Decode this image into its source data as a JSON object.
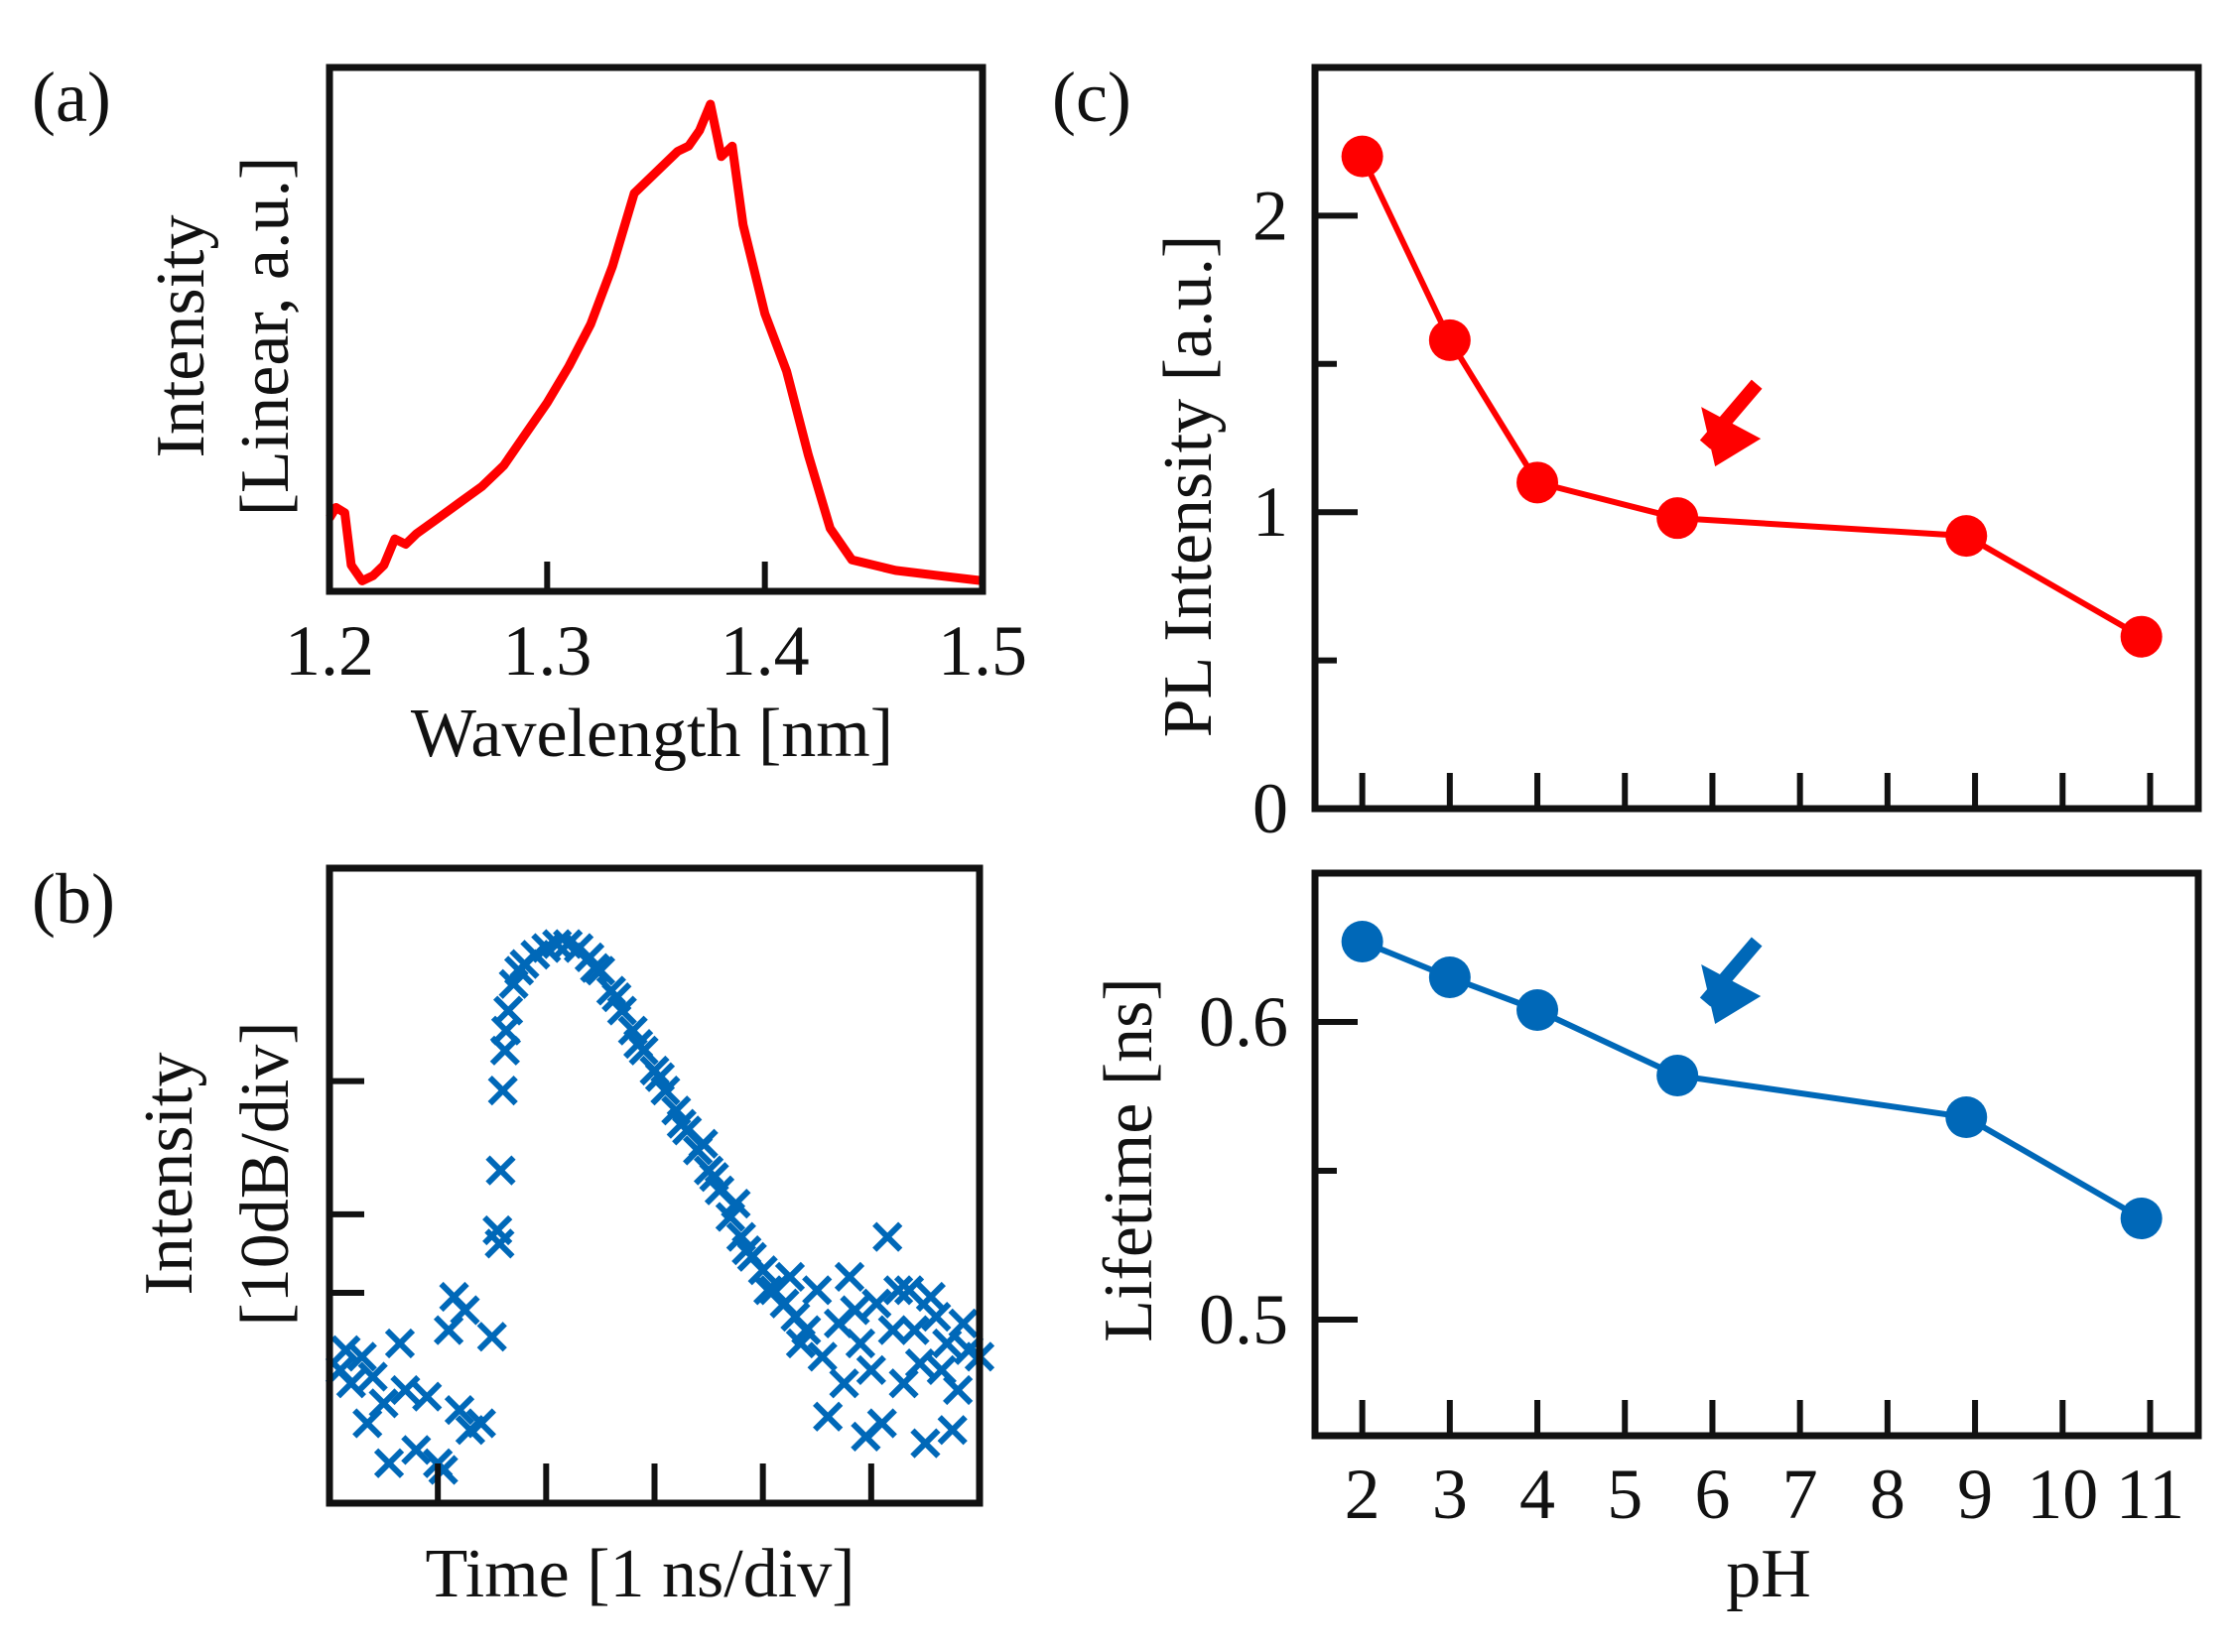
{
  "panel_labels": {
    "a": "(a)",
    "b": "(b)",
    "c": "(c)"
  },
  "colors": {
    "red": "#ff0000",
    "blue": "#0068b8",
    "axis": "#111111"
  },
  "chart_data": [
    {
      "id": "a",
      "type": "line",
      "xlabel": "Wavelength [nm]",
      "ylabel_lines": [
        "Intensity",
        "[Linear, a.u.]"
      ],
      "xlim": [
        1.2,
        1.5
      ],
      "ylim": [
        0,
        1
      ],
      "xticks": [
        1.2,
        1.3,
        1.4,
        1.5
      ],
      "xtick_labels": [
        "1.2",
        "1.3",
        "1.4",
        "1.5"
      ],
      "grid": false,
      "color": "#ff0000",
      "points": [
        [
          1.2,
          0.14
        ],
        [
          1.203,
          0.16
        ],
        [
          1.207,
          0.15
        ],
        [
          1.21,
          0.05
        ],
        [
          1.215,
          0.02
        ],
        [
          1.22,
          0.03
        ],
        [
          1.225,
          0.05
        ],
        [
          1.23,
          0.1
        ],
        [
          1.235,
          0.09
        ],
        [
          1.24,
          0.11
        ],
        [
          1.25,
          0.14
        ],
        [
          1.26,
          0.17
        ],
        [
          1.27,
          0.2
        ],
        [
          1.28,
          0.24
        ],
        [
          1.29,
          0.3
        ],
        [
          1.3,
          0.36
        ],
        [
          1.31,
          0.43
        ],
        [
          1.32,
          0.51
        ],
        [
          1.33,
          0.62
        ],
        [
          1.34,
          0.76
        ],
        [
          1.35,
          0.8
        ],
        [
          1.36,
          0.84
        ],
        [
          1.365,
          0.85
        ],
        [
          1.37,
          0.88
        ],
        [
          1.375,
          0.93
        ],
        [
          1.38,
          0.83
        ],
        [
          1.385,
          0.85
        ],
        [
          1.39,
          0.7
        ],
        [
          1.4,
          0.53
        ],
        [
          1.41,
          0.42
        ],
        [
          1.42,
          0.26
        ],
        [
          1.43,
          0.12
        ],
        [
          1.44,
          0.06
        ],
        [
          1.46,
          0.04
        ],
        [
          1.48,
          0.03
        ],
        [
          1.5,
          0.02
        ]
      ]
    },
    {
      "id": "b",
      "type": "scatter",
      "marker": "x",
      "xlabel": "Time [1 ns/div]",
      "ylabel_lines": [
        "Intensity",
        "[10dB/div]"
      ],
      "xlim": [
        0,
        6
      ],
      "ylim": [
        0,
        4.77
      ],
      "xticks": [
        1,
        2,
        3,
        4,
        5
      ],
      "yticks": [
        1.58,
        2.17,
        3.17
      ],
      "grid": false,
      "color": "#0068b8",
      "points": [
        [
          0.1,
          1.0
        ],
        [
          0.15,
          1.15
        ],
        [
          0.2,
          0.9
        ],
        [
          0.3,
          1.1
        ],
        [
          0.35,
          0.6
        ],
        [
          0.4,
          0.95
        ],
        [
          0.5,
          0.75
        ],
        [
          0.55,
          0.3
        ],
        [
          0.65,
          1.2
        ],
        [
          0.7,
          0.85
        ],
        [
          0.8,
          0.4
        ],
        [
          0.9,
          0.8
        ],
        [
          1.0,
          0.3
        ],
        [
          1.05,
          0.25
        ],
        [
          1.1,
          1.3
        ],
        [
          1.15,
          1.55
        ],
        [
          1.2,
          0.7
        ],
        [
          1.25,
          1.45
        ],
        [
          1.3,
          0.55
        ],
        [
          1.4,
          0.6
        ],
        [
          1.5,
          1.25
        ],
        [
          1.55,
          2.05
        ],
        [
          1.57,
          1.95
        ],
        [
          1.58,
          2.5
        ],
        [
          1.6,
          3.1
        ],
        [
          1.62,
          3.4
        ],
        [
          1.63,
          3.55
        ],
        [
          1.65,
          3.7
        ],
        [
          1.7,
          3.9
        ],
        [
          1.75,
          4.0
        ],
        [
          1.8,
          4.05
        ],
        [
          1.9,
          4.12
        ],
        [
          2.0,
          4.17
        ],
        [
          2.1,
          4.2
        ],
        [
          2.2,
          4.2
        ],
        [
          2.3,
          4.17
        ],
        [
          2.4,
          4.1
        ],
        [
          2.45,
          4.02
        ],
        [
          2.5,
          4.0
        ],
        [
          2.6,
          3.85
        ],
        [
          2.65,
          3.8
        ],
        [
          2.7,
          3.7
        ],
        [
          2.8,
          3.55
        ],
        [
          2.85,
          3.45
        ],
        [
          2.9,
          3.4
        ],
        [
          3.0,
          3.25
        ],
        [
          3.05,
          3.2
        ],
        [
          3.1,
          3.1
        ],
        [
          3.2,
          2.95
        ],
        [
          3.25,
          2.85
        ],
        [
          3.3,
          2.8
        ],
        [
          3.4,
          2.65
        ],
        [
          3.45,
          2.7
        ],
        [
          3.5,
          2.5
        ],
        [
          3.55,
          2.45
        ],
        [
          3.6,
          2.35
        ],
        [
          3.7,
          2.15
        ],
        [
          3.75,
          2.25
        ],
        [
          3.8,
          2.0
        ],
        [
          3.85,
          1.9
        ],
        [
          3.9,
          1.85
        ],
        [
          4.0,
          1.75
        ],
        [
          4.05,
          1.6
        ],
        [
          4.1,
          1.6
        ],
        [
          4.2,
          1.5
        ],
        [
          4.25,
          1.7
        ],
        [
          4.3,
          1.4
        ],
        [
          4.35,
          1.2
        ],
        [
          4.4,
          1.3
        ],
        [
          4.5,
          1.6
        ],
        [
          4.55,
          1.1
        ],
        [
          4.6,
          0.65
        ],
        [
          4.7,
          1.35
        ],
        [
          4.75,
          0.9
        ],
        [
          4.8,
          1.7
        ],
        [
          4.85,
          1.45
        ],
        [
          4.9,
          1.2
        ],
        [
          4.95,
          0.5
        ],
        [
          5.0,
          1.0
        ],
        [
          5.05,
          1.5
        ],
        [
          5.1,
          0.6
        ],
        [
          5.15,
          2.0
        ],
        [
          5.2,
          1.3
        ],
        [
          5.25,
          1.6
        ],
        [
          5.3,
          0.9
        ],
        [
          5.35,
          1.6
        ],
        [
          5.4,
          1.3
        ],
        [
          5.45,
          1.05
        ],
        [
          5.5,
          0.45
        ],
        [
          5.55,
          1.55
        ],
        [
          5.6,
          1.4
        ],
        [
          5.65,
          1.0
        ],
        [
          5.7,
          1.2
        ],
        [
          5.75,
          0.55
        ],
        [
          5.8,
          0.85
        ],
        [
          5.85,
          1.35
        ],
        [
          5.9,
          1.15
        ],
        [
          6.0,
          1.1
        ]
      ]
    },
    {
      "id": "c-top",
      "type": "line",
      "marker": "circle",
      "ylabel": "PL Intensity [a.u.]",
      "xlim": [
        1.46,
        11.55
      ],
      "ylim": [
        0,
        2.5
      ],
      "yticks": [
        0,
        1,
        2
      ],
      "ytick_labels": [
        "0",
        "1",
        "2"
      ],
      "yminor": [
        0.5,
        1.5
      ],
      "xticks": [
        2,
        3,
        4,
        5,
        6,
        7,
        8,
        9,
        10,
        11
      ],
      "grid": false,
      "color": "#ff0000",
      "x": [
        2,
        3,
        4,
        5.6,
        8.9,
        10.9
      ],
      "y": [
        2.2,
        1.58,
        1.1,
        0.98,
        0.92,
        0.58
      ],
      "annotation": {
        "type": "arrow",
        "points_to_x": 5.6
      }
    },
    {
      "id": "c-bottom",
      "type": "line",
      "marker": "circle",
      "ylabel": "Lifetime [ns]",
      "xlabel": "pH",
      "xlim": [
        1.46,
        11.55
      ],
      "ylim": [
        0.461,
        0.65
      ],
      "yticks": [
        0.5,
        0.6
      ],
      "ytick_labels": [
        "0.5",
        "0.6"
      ],
      "yminor": [
        0.55
      ],
      "xticks": [
        2,
        3,
        4,
        5,
        6,
        7,
        8,
        9,
        10,
        11
      ],
      "xtick_labels": [
        "2",
        "3",
        "4",
        "5",
        "6",
        "7",
        "8",
        "9",
        "10",
        "11"
      ],
      "grid": false,
      "color": "#0068b8",
      "x": [
        2,
        3,
        4,
        5.6,
        8.9,
        10.9
      ],
      "y": [
        0.627,
        0.615,
        0.604,
        0.582,
        0.568,
        0.534
      ],
      "annotation": {
        "type": "arrow",
        "points_to_x": 5.6
      }
    }
  ]
}
